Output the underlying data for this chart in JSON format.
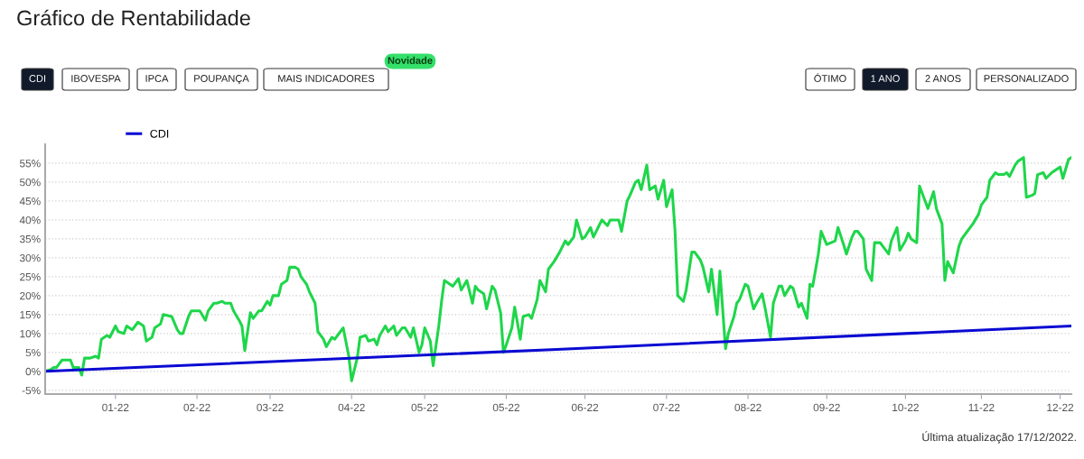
{
  "chart_data": {
    "type": "line",
    "title": "Gráfico de Rentabilidade",
    "annotations": [
      "CDI",
      "IBOVESPA",
      "IPCA",
      "POUPANÇA",
      "MAIS INDICADORES",
      "Novidade",
      "ÓTIMO",
      "1 ANO",
      "2 ANOS",
      "PERSONALIZADO",
      "Última atualização 17/12/2022."
    ],
    "xlim": [
      "2021-12-17",
      "2022-12-17"
    ],
    "xticks": [
      {
        "value": "2022-01-11",
        "label": "01-22"
      },
      {
        "value": "2022-02-09",
        "label": "02-22"
      },
      {
        "value": "2022-03-07",
        "label": "03-22"
      },
      {
        "value": "2022-04-05",
        "label": "04-22"
      },
      {
        "value": "2022-05-01",
        "label": "05-22"
      },
      {
        "value": "2022-05-30",
        "label": "05-22"
      },
      {
        "value": "2022-06-27",
        "label": "06-22"
      },
      {
        "value": "2022-07-26",
        "label": "07-22"
      },
      {
        "value": "2022-08-24",
        "label": "08-22"
      },
      {
        "value": "2022-09-21",
        "label": "09-22"
      },
      {
        "value": "2022-10-19",
        "label": "10-22"
      },
      {
        "value": "2022-11-15",
        "label": "11-22"
      },
      {
        "value": "2022-12-13",
        "label": "12-22"
      }
    ],
    "ylim": [
      -6,
      60
    ],
    "yticks": [
      {
        "value": -5,
        "label": "-5%"
      },
      {
        "value": 0,
        "label": "0%"
      },
      {
        "value": 5,
        "label": "5%"
      },
      {
        "value": 10,
        "label": "10%"
      },
      {
        "value": 15,
        "label": "15%"
      },
      {
        "value": 20,
        "label": "20%"
      },
      {
        "value": 25,
        "label": "25%"
      },
      {
        "value": 30,
        "label": "30%"
      },
      {
        "value": 35,
        "label": "35%"
      },
      {
        "value": 40,
        "label": "40%"
      },
      {
        "value": 45,
        "label": "45%"
      },
      {
        "value": 50,
        "label": "50%"
      },
      {
        "value": 55,
        "label": "55%"
      }
    ],
    "grid": "y",
    "legend": "top left",
    "marker": "none",
    "line_style": "solid",
    "series": [
      {
        "color": "#1ed64a",
        "x": [
          "2021-12-17",
          "2021-12-19",
          "2021-12-20",
          "2021-12-21",
          "2021-12-23",
          "2021-12-26",
          "2021-12-27",
          "2021-12-29",
          "2021-12-30",
          "2021-12-31",
          "2022-01-02",
          "2022-01-04",
          "2022-01-05",
          "2022-01-06",
          "2022-01-08",
          "2022-01-09",
          "2022-01-11",
          "2022-01-12",
          "2022-01-14",
          "2022-01-15",
          "2022-01-17",
          "2022-01-19",
          "2022-01-21",
          "2022-01-22",
          "2022-01-24",
          "2022-01-25",
          "2022-01-27",
          "2022-01-28",
          "2022-01-31",
          "2022-02-02",
          "2022-02-03",
          "2022-02-04",
          "2022-02-06",
          "2022-02-07",
          "2022-02-10",
          "2022-02-12",
          "2022-02-13",
          "2022-02-15",
          "2022-02-16",
          "2022-02-18",
          "2022-02-19",
          "2022-02-21",
          "2022-02-22",
          "2022-02-24",
          "2022-02-25",
          "2022-02-26",
          "2022-02-28",
          "2022-03-01",
          "2022-03-03",
          "2022-03-04",
          "2022-03-06",
          "2022-03-07",
          "2022-03-08",
          "2022-03-10",
          "2022-03-11",
          "2022-03-13",
          "2022-03-14",
          "2022-03-16",
          "2022-03-17",
          "2022-03-18",
          "2022-03-20",
          "2022-03-21",
          "2022-03-23",
          "2022-03-24",
          "2022-03-26",
          "2022-03-27",
          "2022-03-29",
          "2022-03-30",
          "2022-04-01",
          "2022-04-02",
          "2022-04-04",
          "2022-04-05",
          "2022-04-07",
          "2022-04-08",
          "2022-04-10",
          "2022-04-11",
          "2022-04-13",
          "2022-04-14",
          "2022-04-15",
          "2022-04-17",
          "2022-04-18",
          "2022-04-20",
          "2022-04-21",
          "2022-04-23",
          "2022-04-24",
          "2022-04-26",
          "2022-04-27",
          "2022-04-29",
          "2022-04-30",
          "2022-05-01",
          "2022-05-03",
          "2022-05-04",
          "2022-05-06",
          "2022-05-07",
          "2022-05-08",
          "2022-05-10",
          "2022-05-11",
          "2022-05-13",
          "2022-05-14",
          "2022-05-16",
          "2022-05-18",
          "2022-05-19",
          "2022-05-20",
          "2022-05-22",
          "2022-05-23",
          "2022-05-25",
          "2022-05-26",
          "2022-05-28",
          "2022-05-29",
          "2022-05-30",
          "2022-06-01",
          "2022-06-02",
          "2022-06-04",
          "2022-06-05",
          "2022-06-07",
          "2022-06-08",
          "2022-06-10",
          "2022-06-11",
          "2022-06-13",
          "2022-06-14",
          "2022-06-16",
          "2022-06-18",
          "2022-06-20",
          "2022-06-21",
          "2022-06-23",
          "2022-06-24",
          "2022-06-26",
          "2022-06-27",
          "2022-06-29",
          "2022-06-30",
          "2022-07-02",
          "2022-07-03",
          "2022-07-05",
          "2022-07-06",
          "2022-07-09",
          "2022-07-10",
          "2022-07-12",
          "2022-07-13",
          "2022-07-15",
          "2022-07-16",
          "2022-07-17",
          "2022-07-19",
          "2022-07-20",
          "2022-07-22",
          "2022-07-23",
          "2022-07-25",
          "2022-07-26",
          "2022-07-28",
          "2022-07-29",
          "2022-07-30",
          "2022-08-01",
          "2022-08-02",
          "2022-08-04",
          "2022-08-05",
          "2022-08-07",
          "2022-08-08",
          "2022-08-10",
          "2022-08-11",
          "2022-08-13",
          "2022-08-14",
          "2022-08-16",
          "2022-08-17",
          "2022-08-19",
          "2022-08-20",
          "2022-08-21",
          "2022-08-23",
          "2022-08-24",
          "2022-08-26",
          "2022-08-27",
          "2022-08-29",
          "2022-08-30",
          "2022-09-01",
          "2022-09-02",
          "2022-09-04",
          "2022-09-05",
          "2022-09-06",
          "2022-09-08",
          "2022-09-09",
          "2022-09-11",
          "2022-09-12",
          "2022-09-14",
          "2022-09-15",
          "2022-09-16",
          "2022-09-18",
          "2022-09-19",
          "2022-09-21",
          "2022-09-24",
          "2022-09-25",
          "2022-09-27",
          "2022-09-28",
          "2022-09-30",
          "2022-10-01",
          "2022-10-02",
          "2022-10-04",
          "2022-10-05",
          "2022-10-07",
          "2022-10-08",
          "2022-10-10",
          "2022-10-11",
          "2022-10-13",
          "2022-10-14",
          "2022-10-16",
          "2022-10-17",
          "2022-10-19",
          "2022-10-20",
          "2022-10-21",
          "2022-10-23",
          "2022-10-24",
          "2022-10-26",
          "2022-10-27",
          "2022-10-29",
          "2022-10-30",
          "2022-11-01",
          "2022-11-02",
          "2022-11-03",
          "2022-11-05",
          "2022-11-07",
          "2022-11-08",
          "2022-11-10",
          "2022-11-11",
          "2022-11-12",
          "2022-11-14",
          "2022-11-15",
          "2022-11-17",
          "2022-11-18",
          "2022-11-20",
          "2022-11-21",
          "2022-11-23",
          "2022-11-24",
          "2022-11-25",
          "2022-11-27",
          "2022-11-28",
          "2022-11-30",
          "2022-12-01",
          "2022-12-03",
          "2022-12-04",
          "2022-12-05",
          "2022-12-07",
          "2022-12-08",
          "2022-12-10",
          "2022-12-11",
          "2022-12-13",
          "2022-12-14",
          "2022-12-16",
          "2022-12-17"
        ],
        "values": [
          0,
          0.5,
          1,
          1,
          3,
          3,
          1,
          1,
          -1,
          3.5,
          3.5,
          4,
          3.5,
          8.5,
          9.5,
          9,
          12,
          10.5,
          10,
          12,
          11,
          13,
          12,
          8,
          9,
          11.5,
          12.5,
          15,
          14.5,
          11,
          10,
          10,
          14.5,
          16,
          16,
          13.5,
          16,
          18,
          18,
          18.5,
          18,
          18,
          16,
          13.5,
          12,
          5.5,
          15.5,
          14,
          16,
          16,
          18.5,
          17.5,
          20,
          20,
          23,
          24,
          27.5,
          27.5,
          27,
          25,
          23,
          21,
          18,
          10.5,
          8.5,
          6.5,
          9,
          8.5,
          10.5,
          11.5,
          4,
          -2.5,
          3.5,
          9,
          9.5,
          8,
          8.5,
          7,
          9.5,
          12,
          10.5,
          12,
          9.5,
          11.5,
          11.5,
          9,
          11.5,
          5,
          7,
          11.5,
          8,
          1.5,
          12,
          18.5,
          24,
          23,
          22.5,
          24.5,
          21.5,
          24,
          18,
          22.5,
          21.5,
          20.5,
          16.5,
          22.5,
          21.5,
          15.5,
          5,
          7,
          11.5,
          17,
          8.5,
          14.5,
          15,
          14,
          19,
          24,
          21,
          27,
          29,
          31.5,
          34.5,
          33.5,
          35.5,
          40,
          35,
          35.5,
          38,
          35.5,
          38.5,
          40,
          38.5,
          40,
          40,
          37,
          45,
          46.5,
          50,
          50.5,
          48,
          54.5,
          48,
          49,
          45.5,
          50.5,
          43.5,
          48,
          37.5,
          20,
          18.5,
          21.5,
          31.5,
          31.5,
          29.5,
          27.5,
          21,
          27,
          15,
          26.5,
          6,
          10,
          14.5,
          18,
          19,
          23,
          22.5,
          16.5,
          18,
          20.5,
          17,
          9,
          18,
          22.5,
          22.5,
          20,
          22.5,
          22,
          17,
          18,
          14,
          23,
          22.5,
          31,
          37,
          33.5,
          34.5,
          38,
          33.5,
          31,
          35.5,
          37,
          37,
          35,
          27,
          24,
          34,
          34,
          33,
          31,
          34.5,
          38,
          32,
          34.5,
          36.5,
          35,
          34,
          49,
          45,
          43,
          47.5,
          43,
          39,
          24,
          29,
          26,
          33,
          35,
          37,
          38,
          39,
          41.5,
          44,
          46,
          50.5,
          52.5,
          52,
          52,
          52.5,
          51.5,
          54.5,
          55.5,
          56.5,
          46,
          46.5,
          47,
          52,
          52.5,
          51,
          52.5,
          53,
          54,
          51,
          56,
          56.5
        ]
      },
      {
        "name": "CDI",
        "color": "#0a0ad2",
        "x": [
          "2021-12-17",
          "2022-06-17",
          "2022-12-17"
        ],
        "values": [
          0,
          5.8,
          12
        ]
      }
    ]
  }
}
